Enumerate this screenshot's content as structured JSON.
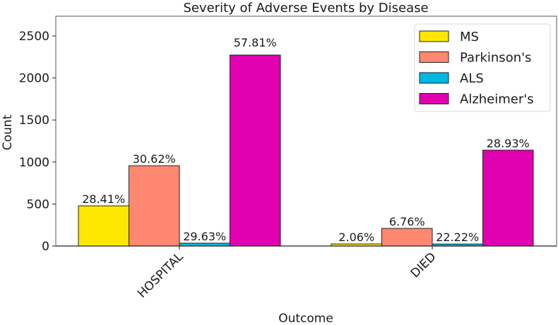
{
  "chart_data": {
    "type": "bar",
    "title": "Severity of Adverse Events by Disease",
    "xlabel": "Outcome",
    "ylabel": "Count",
    "categories": [
      "HOSPITAL",
      "DIED"
    ],
    "ylim": [
      0,
      2730
    ],
    "yticks": [
      0,
      500,
      1000,
      1500,
      2000,
      2500
    ],
    "ytick_labels": [
      "0",
      "500",
      "1000",
      "1500",
      "2000",
      "2500"
    ],
    "grid": false,
    "legend_position": "top-right",
    "series": [
      {
        "name": "MS",
        "color": "#FFE800",
        "values": [
          478,
          25
        ],
        "labels": [
          "28.41%",
          "2.06%"
        ]
      },
      {
        "name": "Parkinson's",
        "color": "#FF8870",
        "values": [
          956,
          210
        ],
        "labels": [
          "30.62%",
          "6.76%"
        ]
      },
      {
        "name": "ALS",
        "color": "#00B8E0",
        "values": [
          34,
          24
        ],
        "labels": [
          "29.63%",
          "22.22%"
        ]
      },
      {
        "name": "Alzheimer's",
        "color": "#E000B0",
        "values": [
          2273,
          1141
        ],
        "labels": [
          "57.81%",
          "28.93%"
        ]
      }
    ]
  }
}
